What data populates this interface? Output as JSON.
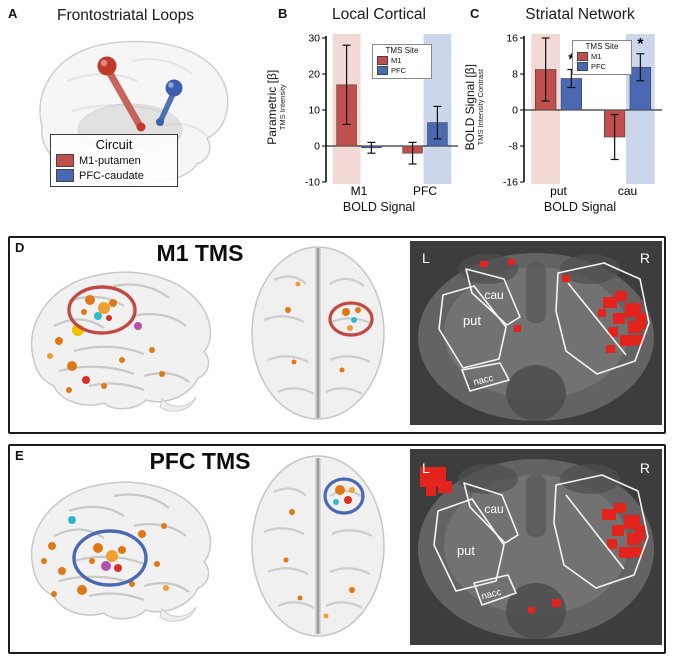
{
  "colors": {
    "m1_red": "#c0504d",
    "pfc_blue": "#4a69b2",
    "band_red": "#f2d9d6",
    "band_blue": "#cdd7ec",
    "activation_red": "#e3231c",
    "activation_orange": "#e07818"
  },
  "panels": {
    "a": {
      "label": "A",
      "title": "Frontostriatal Loops",
      "legend": {
        "title": "Circuit",
        "items": [
          {
            "label": "M1-putamen",
            "color": "#c0504d"
          },
          {
            "label": "PFC-caudate",
            "color": "#4a69b2"
          }
        ]
      }
    },
    "b": {
      "label": "B"
    },
    "c": {
      "label": "C"
    },
    "d": {
      "label": "D",
      "title": "M1 TMS",
      "slice": {
        "left": "L",
        "right": "R",
        "cau": "cau",
        "put": "put",
        "nacc": "nacc"
      }
    },
    "e": {
      "label": "E",
      "title": "PFC TMS",
      "slice": {
        "left": "L",
        "right": "R",
        "cau": "cau",
        "put": "put",
        "nacc": "nacc"
      }
    }
  },
  "chart_data": [
    {
      "id": "chartB",
      "type": "bar",
      "title": "Local Cortical",
      "ylabel": "Parametric [β]",
      "ylabel_sub": "TMS Intensity",
      "xlabel": "BOLD Signal",
      "ylim": [
        -10,
        30
      ],
      "yticks": [
        -10,
        0,
        10,
        20,
        30
      ],
      "categories": [
        "M1",
        "PFC"
      ],
      "legend": {
        "title": "TMS Site",
        "entries": [
          "M1",
          "PFC"
        ]
      },
      "sig_marker": "*",
      "series": [
        {
          "name": "M1",
          "color": "#c0504d",
          "values": [
            17,
            -2
          ],
          "errors": [
            11,
            3
          ],
          "sig": [
            false,
            false
          ]
        },
        {
          "name": "PFC",
          "color": "#4a69b2",
          "values": [
            -0.5,
            6.5
          ],
          "errors": [
            1.5,
            4.5
          ],
          "sig": [
            false,
            false
          ]
        }
      ],
      "bands": [
        {
          "category": "M1",
          "series": 0,
          "color": "#f2d9d6"
        },
        {
          "category": "PFC",
          "series": 1,
          "color": "#cdd7ec"
        }
      ]
    },
    {
      "id": "chartC",
      "type": "bar",
      "title": "Striatal Network",
      "ylabel": "BOLD Signal [β]",
      "ylabel_sub": "TMS Intensity Contrast",
      "xlabel": "BOLD Signal",
      "ylim": [
        -16,
        16
      ],
      "yticks": [
        -16,
        -8,
        0,
        8,
        16
      ],
      "categories": [
        "put",
        "cau"
      ],
      "legend": {
        "title": "TMS Site",
        "entries": [
          "M1",
          "PFC"
        ]
      },
      "sig_marker": "*",
      "series": [
        {
          "name": "M1",
          "color": "#c0504d",
          "values": [
            9,
            -6
          ],
          "errors": [
            7,
            5
          ],
          "sig": [
            false,
            false
          ]
        },
        {
          "name": "PFC",
          "color": "#4a69b2",
          "values": [
            7,
            9.5
          ],
          "errors": [
            2,
            3
          ],
          "sig": [
            true,
            true
          ]
        }
      ],
      "bands": [
        {
          "category": "put",
          "series": 0,
          "color": "#f2d9d6"
        },
        {
          "category": "cau",
          "series": 1,
          "color": "#cdd7ec"
        }
      ]
    }
  ]
}
